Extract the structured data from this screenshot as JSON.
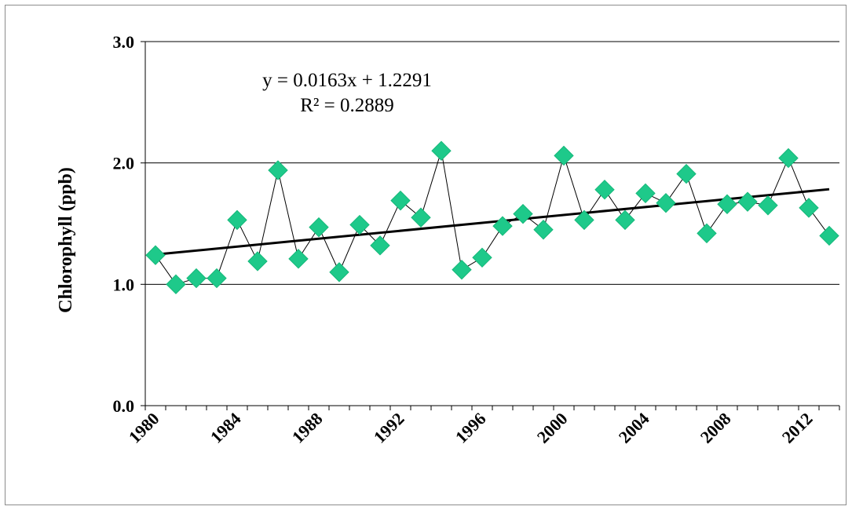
{
  "chart_data": {
    "type": "scatter",
    "title": "",
    "xlabel": "",
    "ylabel": "Chlorophyll (ppb)",
    "ylim": [
      0,
      3
    ],
    "xlim": [
      1980,
      2013
    ],
    "yticks": [
      "0.0",
      "1.0",
      "2.0",
      "3.0"
    ],
    "ytick_values": [
      0,
      1,
      2,
      3
    ],
    "xticks": [
      "1980",
      "1984",
      "1988",
      "1992",
      "1996",
      "2000",
      "2004",
      "2008",
      "2012"
    ],
    "xtick_values": [
      1980,
      1984,
      1988,
      1992,
      1996,
      2000,
      2004,
      2008,
      2012
    ],
    "grid": "horizontal",
    "legend": "none",
    "marker_color": "#1ec98a",
    "line_color": "#000000",
    "series": [
      {
        "x": [
          1980,
          1981,
          1982,
          1983,
          1984,
          1985,
          1986,
          1987,
          1988,
          1989,
          1990,
          1991,
          1992,
          1993,
          1994,
          1995,
          1996,
          1997,
          1998,
          1999,
          2000,
          2001,
          2002,
          2003,
          2004,
          2005,
          2006,
          2007,
          2008,
          2009,
          2010,
          2011,
          2012,
          2013
        ],
        "y": [
          1.24,
          1.0,
          1.05,
          1.05,
          1.53,
          1.19,
          1.94,
          1.21,
          1.47,
          1.1,
          1.49,
          1.32,
          1.69,
          1.55,
          2.1,
          1.12,
          1.22,
          1.48,
          1.58,
          1.45,
          2.06,
          1.53,
          1.78,
          1.53,
          1.75,
          1.67,
          1.91,
          1.42,
          1.66,
          1.68,
          1.65,
          2.04,
          1.63,
          1.4
        ]
      }
    ],
    "trendline": {
      "slope": 0.0163,
      "intercept": 1.2291,
      "x_origin": 1980,
      "x_range": [
        1980,
        2013
      ]
    },
    "annotations": {
      "equation": "y = 0.0163x + 1.2291",
      "r_squared": "R² = 0.2889"
    }
  }
}
